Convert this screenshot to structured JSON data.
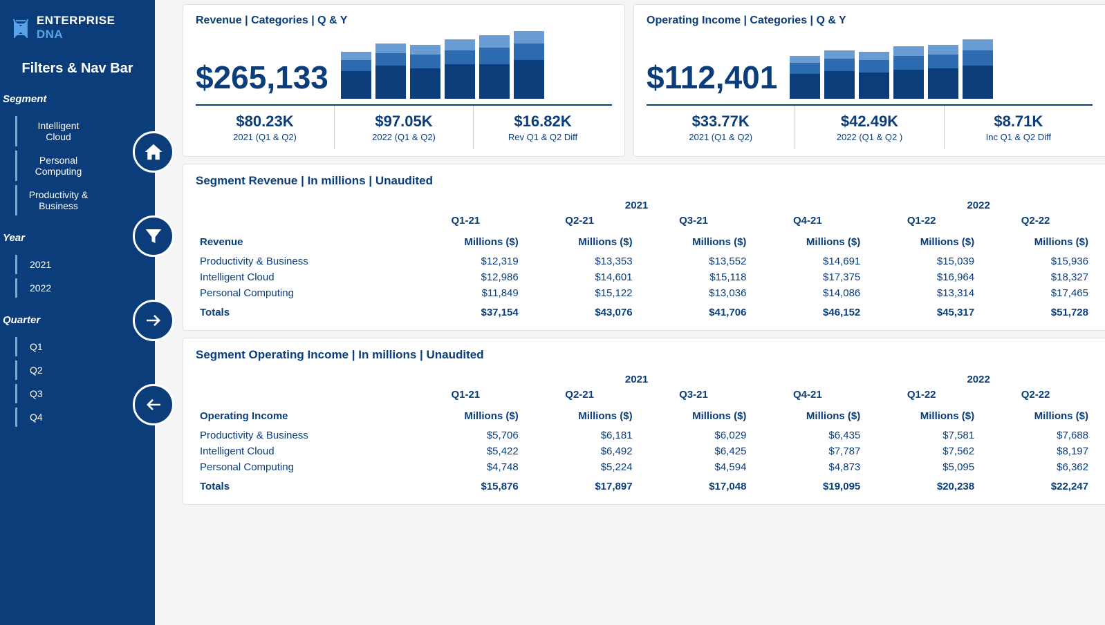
{
  "colors": {
    "sidebar_bg": "#0a3d7a",
    "accent": "#5aa3e8",
    "bar_colors": [
      "#0a3d7a",
      "#2d6bb0",
      "#6a9cd4"
    ]
  },
  "logo": {
    "main": "ENTERPRISE",
    "accent": "DNA"
  },
  "sidebar": {
    "title": "Filters & Nav Bar",
    "segment_label": "Segment",
    "segments": [
      "Intelligent Cloud",
      "Personal Computing",
      "Productivity & Business"
    ],
    "year_label": "Year",
    "years": [
      "2021",
      "2022"
    ],
    "quarter_label": "Quarter",
    "quarters": [
      "Q1",
      "Q2",
      "Q3",
      "Q4"
    ]
  },
  "revenue_card": {
    "title": "Revenue | Categories | Q & Y",
    "total": "$265,133",
    "bars": [
      [
        40,
        16,
        12
      ],
      [
        48,
        18,
        14
      ],
      [
        44,
        20,
        14
      ],
      [
        50,
        20,
        16
      ],
      [
        50,
        24,
        18
      ],
      [
        56,
        24,
        18
      ]
    ],
    "sub": [
      {
        "val": "$80.23K",
        "lbl": "2021 (Q1 & Q2)"
      },
      {
        "val": "$97.05K",
        "lbl": "2022 (Q1 & Q2)"
      },
      {
        "val": "$16.82K",
        "lbl": "Rev Q1 & Q2 Diff"
      }
    ]
  },
  "income_card": {
    "title": "Operating Income | Categories | Q & Y",
    "total": "$112,401",
    "bars": [
      [
        36,
        16,
        10
      ],
      [
        40,
        18,
        12
      ],
      [
        38,
        18,
        12
      ],
      [
        42,
        20,
        14
      ],
      [
        44,
        20,
        14
      ],
      [
        48,
        22,
        16
      ]
    ],
    "sub": [
      {
        "val": "$33.77K",
        "lbl": "2021 (Q1 & Q2)"
      },
      {
        "val": "$42.49K",
        "lbl": "2022 (Q1 & Q2 )"
      },
      {
        "val": "$8.71K",
        "lbl": "Inc Q1 & Q2 Diff"
      }
    ]
  },
  "revenue_table": {
    "title": "Segment Revenue | In millions |  Unaudited",
    "row_header": "Revenue",
    "years": [
      "2021",
      "2022"
    ],
    "quarters": [
      "Q1-21",
      "Q2-21",
      "Q3-21",
      "Q4-21",
      "Q1-22",
      "Q2-22"
    ],
    "col_header": "Millions ($)",
    "rows": [
      {
        "name": "Productivity & Business",
        "vals": [
          "$12,319",
          "$13,353",
          "$13,552",
          "$14,691",
          "$15,039",
          "$15,936"
        ]
      },
      {
        "name": "Intelligent Cloud",
        "vals": [
          "$12,986",
          "$14,601",
          "$15,118",
          "$17,375",
          "$16,964",
          "$18,327"
        ]
      },
      {
        "name": "Personal Computing",
        "vals": [
          "$11,849",
          "$15,122",
          "$13,036",
          "$14,086",
          "$13,314",
          "$17,465"
        ]
      }
    ],
    "totals_label": "Totals",
    "totals": [
      "$37,154",
      "$43,076",
      "$41,706",
      "$46,152",
      "$45,317",
      "$51,728"
    ]
  },
  "income_table": {
    "title": "Segment Operating Income | In millions |  Unaudited",
    "row_header": "Operating Income",
    "years": [
      "2021",
      "2022"
    ],
    "quarters": [
      "Q1-21",
      "Q2-21",
      "Q3-21",
      "Q4-21",
      "Q1-22",
      "Q2-22"
    ],
    "col_header": "Millions ($)",
    "rows": [
      {
        "name": "Productivity & Business",
        "vals": [
          "$5,706",
          "$6,181",
          "$6,029",
          "$6,435",
          "$7,581",
          "$7,688"
        ]
      },
      {
        "name": "Intelligent Cloud",
        "vals": [
          "$5,422",
          "$6,492",
          "$6,425",
          "$7,787",
          "$7,562",
          "$8,197"
        ]
      },
      {
        "name": "Personal Computing",
        "vals": [
          "$4,748",
          "$5,224",
          "$4,594",
          "$4,873",
          "$5,095",
          "$6,362"
        ]
      }
    ],
    "totals_label": "Totals",
    "totals": [
      "$15,876",
      "$17,897",
      "$17,048",
      "$19,095",
      "$20,238",
      "$22,247"
    ]
  }
}
